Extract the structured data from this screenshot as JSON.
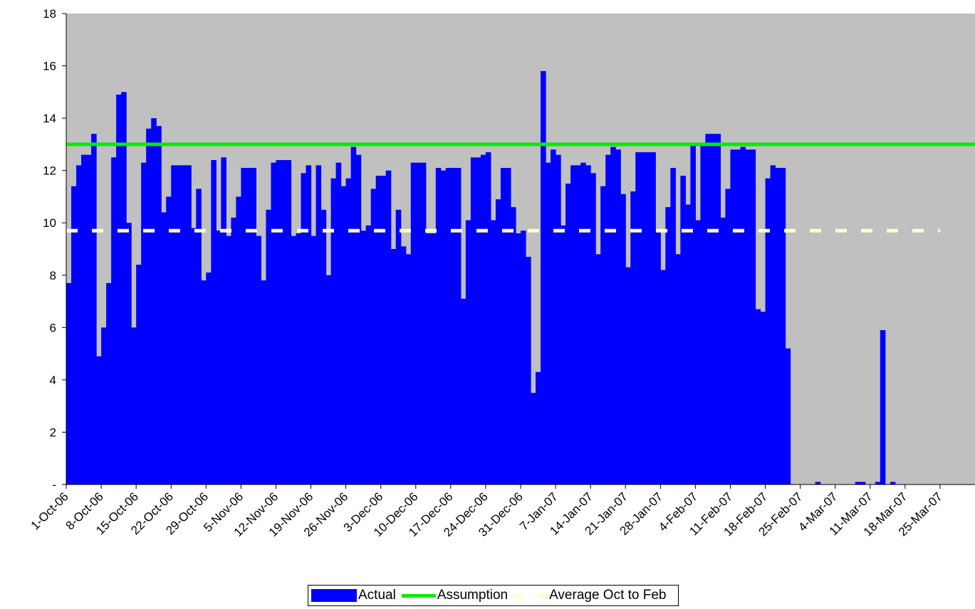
{
  "chart_data": {
    "type": "bar",
    "title": "",
    "xlabel": "",
    "ylabel": "",
    "ylim": [
      0,
      18
    ],
    "y_ticks": [
      "-",
      "2",
      "4",
      "6",
      "8",
      "10",
      "12",
      "14",
      "16",
      "18"
    ],
    "x_start": "1-Oct-06",
    "x_end": "1-Apr-07",
    "x_ticks": [
      "1-Oct-06",
      "8-Oct-06",
      "15-Oct-06",
      "22-Oct-06",
      "29-Oct-06",
      "5-Nov-06",
      "12-Nov-06",
      "19-Nov-06",
      "26-Nov-06",
      "3-Dec-06",
      "10-Dec-06",
      "17-Dec-06",
      "24-Dec-06",
      "31-Dec-06",
      "7-Jan-07",
      "14-Jan-07",
      "21-Jan-07",
      "28-Jan-07",
      "4-Feb-07",
      "11-Feb-07",
      "18-Feb-07",
      "25-Feb-07",
      "4-Mar-07",
      "11-Mar-07",
      "18-Mar-07",
      "25-Mar-07"
    ],
    "grid": false,
    "legend_position": "bottom",
    "plot_background": "#c0c0c0",
    "series": [
      {
        "name": "Actual",
        "kind": "bar",
        "color": "#0000ff",
        "values": [
          7.7,
          11.4,
          12.2,
          12.6,
          12.6,
          13.4,
          4.9,
          6.0,
          7.7,
          12.5,
          14.9,
          15.0,
          10.0,
          6.0,
          8.4,
          12.3,
          13.6,
          14.0,
          13.7,
          10.4,
          11.0,
          12.2,
          12.2,
          12.2,
          12.2,
          9.8,
          11.3,
          7.8,
          8.1,
          12.4,
          9.7,
          12.5,
          9.5,
          10.2,
          11.0,
          12.1,
          12.1,
          12.1,
          9.5,
          7.8,
          10.5,
          12.3,
          12.4,
          12.4,
          12.4,
          9.5,
          9.6,
          11.9,
          12.2,
          9.5,
          12.2,
          10.5,
          8.0,
          11.7,
          12.3,
          11.4,
          11.7,
          12.9,
          12.6,
          9.7,
          9.9,
          11.3,
          11.8,
          11.8,
          12.0,
          9.0,
          10.5,
          9.1,
          8.8,
          12.3,
          12.3,
          12.3,
          9.6,
          9.6,
          12.1,
          12.0,
          12.1,
          12.1,
          12.1,
          7.1,
          10.1,
          12.5,
          12.5,
          12.6,
          12.7,
          10.1,
          10.9,
          12.1,
          12.1,
          10.6,
          9.6,
          9.7,
          8.7,
          3.5,
          4.3,
          15.8,
          12.3,
          12.8,
          12.6,
          9.9,
          11.5,
          12.2,
          12.2,
          12.3,
          12.2,
          11.9,
          8.8,
          11.4,
          12.6,
          12.9,
          12.8,
          11.1,
          8.3,
          11.2,
          12.7,
          12.7,
          12.7,
          12.7,
          9.7,
          8.2,
          10.6,
          12.1,
          8.8,
          11.8,
          10.7,
          13.0,
          10.1,
          13.0,
          13.4,
          13.4,
          13.4,
          10.2,
          11.3,
          12.8,
          12.8,
          12.9,
          12.8,
          12.8,
          6.7,
          6.6,
          11.7,
          12.2,
          12.1,
          12.1,
          5.2,
          0,
          0,
          0,
          0,
          0,
          0.1,
          0,
          0,
          0,
          0,
          0,
          0,
          0,
          0.1,
          0.1,
          0,
          0,
          0.1,
          5.9,
          0,
          0.1,
          0,
          0,
          0,
          0,
          0,
          0,
          0,
          0,
          0,
          0,
          0,
          0,
          0,
          0
        ]
      },
      {
        "name": "Assumption",
        "kind": "line",
        "color": "#00ee00",
        "value": 13.0
      },
      {
        "name": "Average Oct to Feb",
        "kind": "dashed-line",
        "color": "#ffffcc",
        "value": 9.7
      }
    ]
  }
}
